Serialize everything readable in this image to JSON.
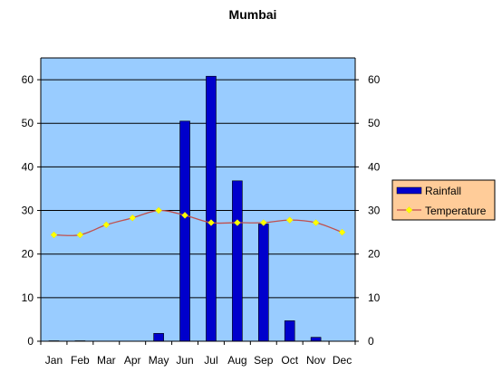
{
  "chart_data": {
    "type": "bar",
    "title": "Mumbai",
    "categories": [
      "Jan",
      "Feb",
      "Mar",
      "Apr",
      "May",
      "Jun",
      "Jul",
      "Aug",
      "Sep",
      "Oct",
      "Nov",
      "Dec"
    ],
    "series": [
      {
        "name": "Rainfall",
        "kind": "bar",
        "color": "#0000cc",
        "values": [
          0.1,
          0.1,
          0,
          0,
          1.8,
          50.5,
          60.8,
          36.8,
          26.9,
          4.7,
          0.9,
          0
        ]
      },
      {
        "name": "Temperature",
        "kind": "line",
        "color": "#c0504d",
        "marker_color": "#ffff00",
        "values": [
          24.4,
          24.4,
          26.7,
          28.3,
          30.0,
          28.9,
          27.2,
          27.2,
          27.2,
          27.8,
          27.2,
          25.0
        ]
      }
    ],
    "ylim": [
      0,
      65
    ],
    "y_ticks": [
      "0",
      "10",
      "20",
      "30",
      "40",
      "50",
      "60"
    ],
    "y_ticks_right": [
      "0",
      "10",
      "20",
      "30",
      "40",
      "50",
      "60"
    ],
    "grid": true,
    "legend": "right",
    "plot_background": "#99ccff",
    "legend_background": "#ffcc99"
  }
}
